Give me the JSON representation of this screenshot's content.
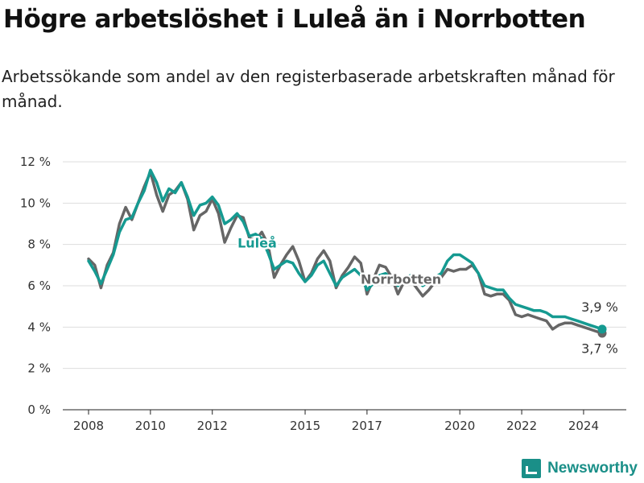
{
  "title": "Högre arbetslöshet i Luleå än i Norrbotten",
  "subtitle": "Arbetssökande som andel av den registerbaserade arbetskraften månad för månad.",
  "brand": "Newsworthy",
  "colors": {
    "lulea": "#159a91",
    "norrbotten": "#666666",
    "grid": "#dddddd"
  },
  "chart_data": {
    "type": "line",
    "title": "Högre arbetslöshet i Luleå än i Norrbotten",
    "xlabel": "",
    "ylabel": "",
    "ylim": [
      0,
      12
    ],
    "xlim": [
      2008.0,
      2024.6
    ],
    "y_ticks": [
      "0 %",
      "2 %",
      "4 %",
      "6 %",
      "8 %",
      "10 %",
      "12 %"
    ],
    "x_ticks": [
      "2008",
      "2010",
      "2012",
      "2015",
      "2017",
      "2020",
      "2022",
      "2024"
    ],
    "series": [
      {
        "name": "Luleå",
        "x": [
          2008.0,
          2008.2,
          2008.4,
          2008.6,
          2008.8,
          2009.0,
          2009.2,
          2009.4,
          2009.6,
          2009.8,
          2010.0,
          2010.2,
          2010.4,
          2010.6,
          2010.8,
          2011.0,
          2011.2,
          2011.4,
          2011.6,
          2011.8,
          2012.0,
          2012.2,
          2012.4,
          2012.6,
          2012.8,
          2013.0,
          2013.2,
          2013.4,
          2013.6,
          2013.8,
          2014.0,
          2014.2,
          2014.4,
          2014.6,
          2014.8,
          2015.0,
          2015.2,
          2015.4,
          2015.6,
          2015.8,
          2016.0,
          2016.2,
          2016.4,
          2016.6,
          2016.8,
          2017.0,
          2017.2,
          2017.4,
          2017.6,
          2017.8,
          2018.0,
          2018.2,
          2018.4,
          2018.6,
          2018.8,
          2019.0,
          2019.2,
          2019.4,
          2019.6,
          2019.8,
          2020.0,
          2020.2,
          2020.4,
          2020.6,
          2020.8,
          2021.0,
          2021.2,
          2021.4,
          2021.6,
          2021.8,
          2022.0,
          2022.2,
          2022.4,
          2022.6,
          2022.8,
          2023.0,
          2023.2,
          2023.4,
          2023.6,
          2023.8,
          2024.0,
          2024.2,
          2024.4,
          2024.6
        ],
        "values": [
          7.2,
          6.7,
          6.1,
          6.8,
          7.5,
          8.6,
          9.2,
          9.3,
          10.0,
          10.6,
          11.6,
          11.0,
          10.1,
          10.7,
          10.5,
          11.0,
          10.3,
          9.4,
          9.9,
          10.0,
          10.3,
          9.9,
          9.0,
          9.2,
          9.5,
          9.1,
          8.4,
          8.5,
          8.3,
          7.6,
          6.8,
          7.0,
          7.2,
          7.1,
          6.6,
          6.2,
          6.5,
          7.0,
          7.2,
          6.6,
          6.0,
          6.4,
          6.6,
          6.8,
          6.5,
          5.8,
          6.1,
          6.5,
          6.6,
          6.3,
          6.0,
          6.3,
          6.5,
          6.3,
          6.0,
          6.2,
          6.4,
          6.6,
          7.2,
          7.5,
          7.5,
          7.3,
          7.1,
          6.6,
          6.0,
          5.9,
          5.8,
          5.8,
          5.4,
          5.1,
          5.0,
          4.9,
          4.8,
          4.8,
          4.7,
          4.5,
          4.5,
          4.5,
          4.4,
          4.3,
          4.2,
          4.1,
          4.0,
          3.9
        ]
      },
      {
        "name": "Norrbotten",
        "x": [
          2008.0,
          2008.2,
          2008.4,
          2008.6,
          2008.8,
          2009.0,
          2009.2,
          2009.4,
          2009.6,
          2009.8,
          2010.0,
          2010.2,
          2010.4,
          2010.6,
          2010.8,
          2011.0,
          2011.2,
          2011.4,
          2011.6,
          2011.8,
          2012.0,
          2012.2,
          2012.4,
          2012.6,
          2012.8,
          2013.0,
          2013.2,
          2013.4,
          2013.6,
          2013.8,
          2014.0,
          2014.2,
          2014.4,
          2014.6,
          2014.8,
          2015.0,
          2015.2,
          2015.4,
          2015.6,
          2015.8,
          2016.0,
          2016.2,
          2016.4,
          2016.6,
          2016.8,
          2017.0,
          2017.2,
          2017.4,
          2017.6,
          2017.8,
          2018.0,
          2018.2,
          2018.4,
          2018.6,
          2018.8,
          2019.0,
          2019.2,
          2019.4,
          2019.6,
          2019.8,
          2020.0,
          2020.2,
          2020.4,
          2020.6,
          2020.8,
          2021.0,
          2021.2,
          2021.4,
          2021.6,
          2021.8,
          2022.0,
          2022.2,
          2022.4,
          2022.6,
          2022.8,
          2023.0,
          2023.2,
          2023.4,
          2023.6,
          2023.8,
          2024.0,
          2024.2,
          2024.4,
          2024.6
        ],
        "values": [
          7.3,
          7.0,
          5.9,
          7.0,
          7.6,
          9.0,
          9.8,
          9.2,
          10.0,
          10.8,
          11.5,
          10.4,
          9.6,
          10.4,
          10.6,
          11.0,
          10.2,
          8.7,
          9.4,
          9.6,
          10.2,
          9.5,
          8.1,
          8.8,
          9.4,
          9.3,
          8.3,
          8.2,
          8.6,
          8.0,
          6.4,
          7.0,
          7.5,
          7.9,
          7.2,
          6.2,
          6.6,
          7.3,
          7.7,
          7.2,
          5.9,
          6.5,
          6.9,
          7.4,
          7.1,
          5.6,
          6.3,
          7.0,
          6.9,
          6.4,
          5.6,
          6.2,
          6.3,
          5.9,
          5.5,
          5.8,
          6.2,
          6.4,
          6.8,
          6.7,
          6.8,
          6.8,
          7.0,
          6.6,
          5.6,
          5.5,
          5.6,
          5.6,
          5.3,
          4.6,
          4.5,
          4.6,
          4.5,
          4.4,
          4.3,
          3.9,
          4.1,
          4.2,
          4.2,
          4.1,
          4.0,
          3.9,
          3.8,
          3.7
        ]
      }
    ],
    "series_labels": [
      "Luleå",
      "Norrbotten"
    ],
    "end_labels": [
      "3,9 %",
      "3,7 %"
    ]
  }
}
